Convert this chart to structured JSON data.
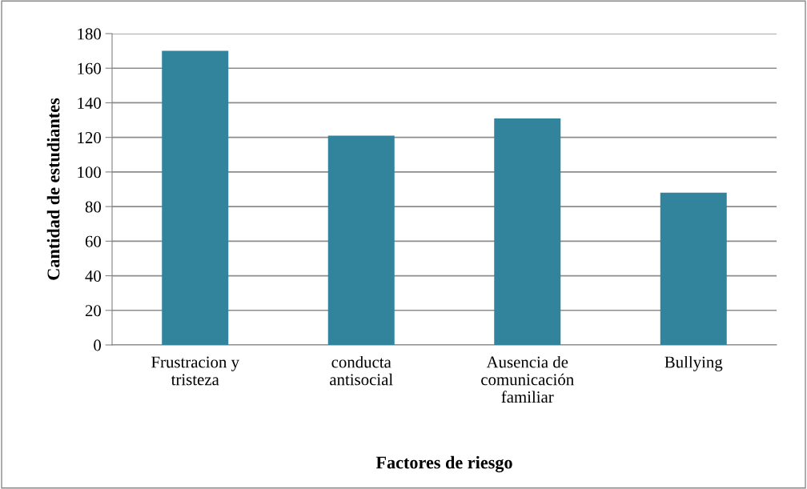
{
  "chart_data": {
    "type": "bar",
    "xlabel": "Factores de riesgo",
    "ylabel": "Cantidad de estudiantes",
    "categories": [
      "Frustracion y\ntristeza",
      "conducta\nantisocial",
      "Ausencia de\ncomunicación\nfamiliar",
      "Bullying"
    ],
    "values": [
      170,
      121,
      131,
      88
    ],
    "color": "#31849b",
    "ylim": [
      0,
      180
    ],
    "yticks": [
      0,
      20,
      40,
      60,
      80,
      100,
      120,
      140,
      160,
      180
    ],
    "grid": "y",
    "legend": false
  }
}
